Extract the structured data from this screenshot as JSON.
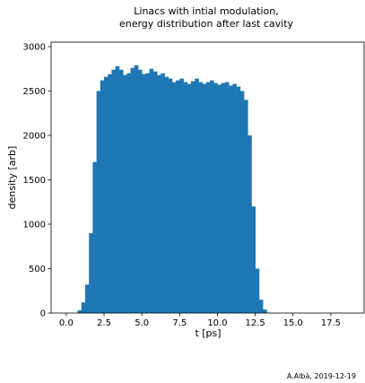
{
  "chart_data": {
    "type": "bar",
    "title": [
      "Linacs with intial modulation,",
      "energy distribution after last cavity"
    ],
    "xlabel": "t [ps]",
    "ylabel": "density [arb]",
    "xlim": [
      -1.0,
      19.7
    ],
    "ylim": [
      0,
      3050
    ],
    "xticks": [
      0.0,
      2.5,
      5.0,
      7.5,
      10.0,
      12.5,
      15.0,
      17.5
    ],
    "xtick_labels": [
      "0.0",
      "2.5",
      "5.0",
      "7.5",
      "10.0",
      "12.5",
      "15.0",
      "17.5"
    ],
    "yticks": [
      0,
      500,
      1000,
      1500,
      2000,
      2500,
      3000
    ],
    "ytick_labels": [
      "0",
      "500",
      "1000",
      "1500",
      "2000",
      "2500",
      "3000"
    ],
    "grid": false,
    "color": "#1f77b4",
    "bin_start": 0.5,
    "bin_width": 0.25,
    "values": [
      0,
      30,
      120,
      320,
      900,
      1700,
      2500,
      2620,
      2660,
      2690,
      2740,
      2780,
      2740,
      2680,
      2700,
      2760,
      2790,
      2740,
      2690,
      2700,
      2750,
      2720,
      2680,
      2700,
      2660,
      2640,
      2600,
      2620,
      2640,
      2600,
      2580,
      2610,
      2640,
      2600,
      2580,
      2600,
      2620,
      2590,
      2570,
      2590,
      2600,
      2560,
      2580,
      2550,
      2500,
      2400,
      2000,
      1200,
      500,
      150,
      40,
      5,
      0
    ]
  },
  "footer": {
    "credit": "A.Albà, 2019-12-19"
  }
}
